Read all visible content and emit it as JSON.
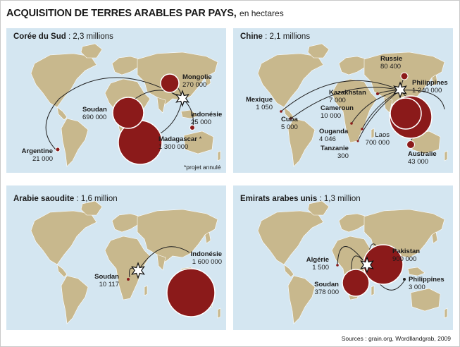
{
  "title": "ACQUISITION DE TERRES ARABLES PAR PAYS,",
  "subtitle": "en hectares",
  "source": "Sources : grain.org, Wordllandgrab, 2009",
  "colors": {
    "ocean": "#d4e6f1",
    "land": "#c8b88d",
    "bubble": "#8b1a1a",
    "bubble_edge": "#ffffff",
    "line": "#222222"
  },
  "panels": [
    {
      "investor": "Corée du Sud",
      "total": "2,3 millions",
      "note": "*projet annulé",
      "targets": [
        {
          "country": "Mongolie",
          "hectares": "270 000",
          "value": 270000
        },
        {
          "country": "Soudan",
          "hectares": "690 000",
          "value": 690000
        },
        {
          "country": "Indonésie",
          "hectares": "25 000",
          "value": 25000
        },
        {
          "country": "Madagascar",
          "marker": "*",
          "hectares": "1 300 000",
          "value": 1300000
        },
        {
          "country": "Argentine",
          "hectares": "21 000",
          "value": 21000
        }
      ]
    },
    {
      "investor": "Chine",
      "total": "2,1 millions",
      "targets": [
        {
          "country": "Russie",
          "hectares": "80 400",
          "value": 80400
        },
        {
          "country": "Philippines",
          "hectares": "1 240 000",
          "value": 1240000
        },
        {
          "country": "Kazakhstan",
          "hectares": "7 000",
          "value": 7000
        },
        {
          "country": "Mexique",
          "hectares": "1 050",
          "value": 1050
        },
        {
          "country": "Cuba",
          "hectares": "5 000",
          "value": 5000
        },
        {
          "country": "Cameroun",
          "hectares": "10 000",
          "value": 10000
        },
        {
          "country": "Ouganda",
          "hectares": "4 046",
          "value": 4046
        },
        {
          "country": "Tanzanie",
          "hectares": "300",
          "value": 300
        },
        {
          "country": "Laos",
          "hectares": "700 000",
          "value": 700000
        },
        {
          "country": "Australie",
          "hectares": "43 000",
          "value": 43000
        }
      ]
    },
    {
      "investor": "Arabie saoudite",
      "total": "1,6 million",
      "targets": [
        {
          "country": "Indonésie",
          "hectares": "1 600 000",
          "value": 1600000
        },
        {
          "country": "Soudan",
          "hectares": "10 117",
          "value": 10117
        }
      ]
    },
    {
      "investor": "Emirats arabes unis",
      "total": "1,3 million",
      "targets": [
        {
          "country": "Pakistan",
          "hectares": "900 000",
          "value": 900000
        },
        {
          "country": "Algérie",
          "hectares": "1 500",
          "value": 1500
        },
        {
          "country": "Soudan",
          "hectares": "378 000",
          "value": 378000
        },
        {
          "country": "Philippines",
          "hectares": "3 000",
          "value": 3000
        }
      ]
    }
  ]
}
